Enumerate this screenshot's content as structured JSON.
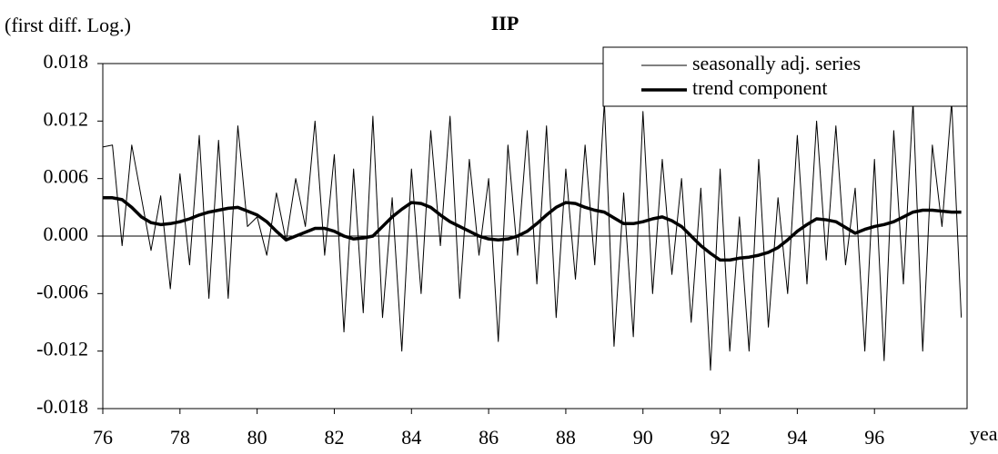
{
  "chart_data": {
    "type": "line",
    "title": "IIP",
    "y_axis_label": "(first diff. Log.)",
    "x_axis_label": "year",
    "legend": "upper right",
    "xlim": [
      76,
      98.4
    ],
    "xticks": [
      76,
      78,
      80,
      82,
      84,
      86,
      88,
      90,
      92,
      94,
      96
    ],
    "ylim": [
      -0.018,
      0.018
    ],
    "yticks": [
      -0.018,
      -0.012,
      -0.006,
      {
        "value": 0,
        "label": "0.000"
      },
      0.006,
      0.012,
      0.018
    ],
    "x": [
      76,
      76.25,
      76.5,
      76.75,
      77,
      77.25,
      77.5,
      77.75,
      78,
      78.25,
      78.5,
      78.75,
      79,
      79.25,
      79.5,
      79.75,
      80,
      80.25,
      80.5,
      80.75,
      81,
      81.25,
      81.5,
      81.75,
      82,
      82.25,
      82.5,
      82.75,
      83,
      83.25,
      83.5,
      83.75,
      84,
      84.25,
      84.5,
      84.75,
      85,
      85.25,
      85.5,
      85.75,
      86,
      86.25,
      86.5,
      86.75,
      87,
      87.25,
      87.5,
      87.75,
      88,
      88.25,
      88.5,
      88.75,
      89,
      89.25,
      89.5,
      89.75,
      90,
      90.25,
      90.5,
      90.75,
      91,
      91.25,
      91.5,
      91.75,
      92,
      92.25,
      92.5,
      92.75,
      93,
      93.25,
      93.5,
      93.75,
      94,
      94.25,
      94.5,
      94.75,
      95,
      95.25,
      95.5,
      95.75,
      96,
      96.25,
      96.5,
      96.75,
      97,
      97.25,
      97.5,
      97.75,
      98,
      98.25
    ],
    "series": [
      {
        "name": "seasonally adj. series",
        "color": "#000000",
        "linewidth": 1,
        "values": [
          0.0093,
          0.0095,
          -0.001,
          0.0095,
          0.004,
          -0.0015,
          0.0042,
          -0.0055,
          0.0065,
          -0.003,
          0.0105,
          -0.0065,
          0.01,
          -0.0065,
          0.0115,
          0.001,
          0.002,
          -0.002,
          0.0045,
          -0.0005,
          0.006,
          0.001,
          0.012,
          -0.002,
          0.0085,
          -0.01,
          0.007,
          -0.008,
          0.0125,
          -0.0085,
          0.004,
          -0.012,
          0.007,
          -0.006,
          0.011,
          -0.001,
          0.0125,
          -0.0065,
          0.008,
          -0.002,
          0.006,
          -0.011,
          0.0095,
          -0.002,
          0.011,
          -0.005,
          0.0115,
          -0.0085,
          0.007,
          -0.0045,
          0.0095,
          -0.003,
          0.014,
          -0.0115,
          0.0045,
          -0.0105,
          0.013,
          -0.006,
          0.008,
          -0.004,
          0.006,
          -0.009,
          0.005,
          -0.014,
          0.007,
          -0.012,
          0.002,
          -0.012,
          0.008,
          -0.0095,
          0.004,
          -0.006,
          0.0105,
          -0.005,
          0.012,
          -0.0025,
          0.0115,
          -0.003,
          0.005,
          -0.012,
          0.008,
          -0.013,
          0.011,
          -0.005,
          0.014,
          -0.012,
          0.0095,
          0.001,
          0.014,
          -0.0085
        ]
      },
      {
        "name": "trend component",
        "color": "#000000",
        "linewidth": 3.5,
        "values": [
          0.004,
          0.004,
          0.0038,
          0.003,
          0.002,
          0.0014,
          0.0012,
          0.0013,
          0.0015,
          0.0018,
          0.0022,
          0.0025,
          0.0027,
          0.0029,
          0.003,
          0.0026,
          0.0022,
          0.0015,
          0.0005,
          -0.0004,
          0,
          0.0004,
          0.0008,
          0.0008,
          0.0005,
          0,
          -0.0003,
          -0.0002,
          0,
          0.001,
          0.002,
          0.0028,
          0.0035,
          0.0034,
          0.003,
          0.0022,
          0.0015,
          0.001,
          0.0005,
          0,
          -0.0003,
          -0.0004,
          -0.0003,
          0,
          0.0005,
          0.0013,
          0.0022,
          0.003,
          0.0035,
          0.0034,
          0.003,
          0.0027,
          0.0025,
          0.0019,
          0.0013,
          0.0013,
          0.0015,
          0.0018,
          0.002,
          0.0016,
          0.001,
          0,
          -0.001,
          -0.0018,
          -0.0025,
          -0.0025,
          -0.0023,
          -0.0022,
          -0.002,
          -0.0017,
          -0.0012,
          -0.0004,
          0.0005,
          0.0012,
          0.0018,
          0.0017,
          0.0015,
          0.0009,
          0.0003,
          0.0007,
          0.001,
          0.0012,
          0.0015,
          0.002,
          0.0025,
          0.0027,
          0.0027,
          0.0026,
          0.0025,
          0.0025
        ]
      }
    ]
  }
}
